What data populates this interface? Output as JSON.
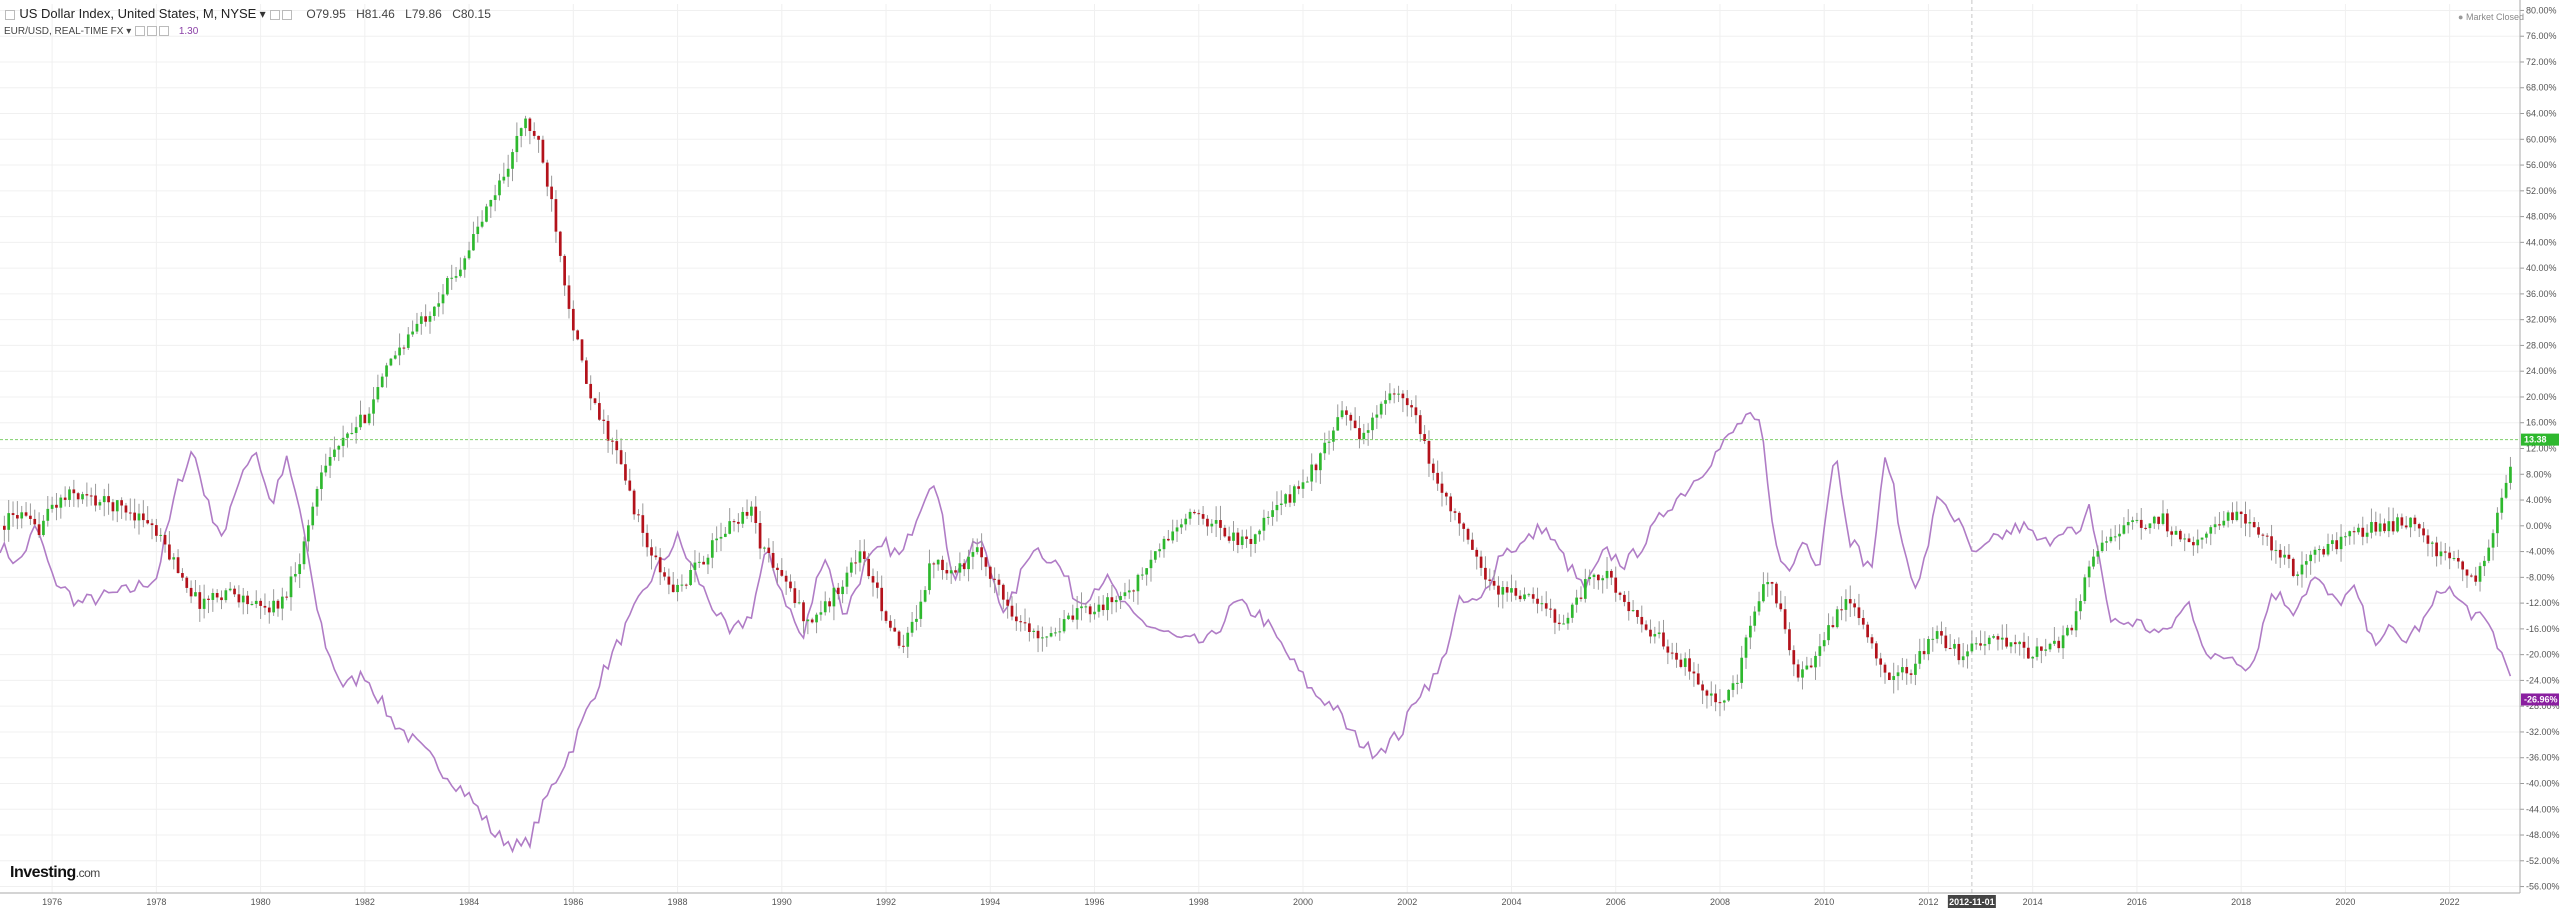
{
  "header": {
    "title": "US Dollar Index, United States, M, NYSE",
    "open": "O79.95",
    "high": "H81.46",
    "low": "L79.86",
    "close": "C80.15",
    "compare_label": "EUR/USD, REAL-TIME FX",
    "compare_value": "1.30",
    "market_status": "Market Closed"
  },
  "logo": {
    "name": "Investing",
    "domain": ".com"
  },
  "cursor_date": "2012-11-01",
  "colors": {
    "up": "#2eb82e",
    "down": "#b3121b",
    "compare": "#b07cc6",
    "last_line": "#7fcf6a",
    "cursor": "#c8c8c8"
  },
  "chart_data": {
    "type": "line",
    "subtype": "candlestick percent-change comparison",
    "title": "US Dollar Index, United States, M, NYSE",
    "xlabel": "",
    "ylabel": "",
    "y_unit": "%",
    "ylim": [
      -57,
      81
    ],
    "xlim": [
      1975.0,
      2023.35
    ],
    "grid": true,
    "y_ticks": [
      80,
      76,
      72,
      68,
      64,
      60,
      56,
      52,
      48,
      44,
      40,
      36,
      32,
      28,
      24,
      20,
      16,
      12,
      8,
      4,
      0,
      -4,
      -8,
      -12,
      -16,
      -20,
      -24,
      -28,
      -32,
      -36,
      -40,
      -44,
      -48,
      -52,
      -56
    ],
    "y_tick_labels": [
      "80.00%",
      "76.00%",
      "72.00%",
      "68.00%",
      "64.00%",
      "60.00%",
      "56.00%",
      "52.00%",
      "48.00%",
      "44.00%",
      "40.00%",
      "36.00%",
      "32.00%",
      "28.00%",
      "24.00%",
      "20.00%",
      "16.00%",
      "12.00%",
      "8.00%",
      "4.00%",
      "0.00%",
      "-4.00%",
      "-8.00%",
      "-12.00%",
      "-16.00%",
      "-20.00%",
      "-24.00%",
      "-28.00%",
      "-32.00%",
      "-36.00%",
      "-40.00%",
      "-44.00%",
      "-48.00%",
      "-52.00%",
      "-56.00%"
    ],
    "x_ticks": [
      1976,
      1978,
      1980,
      1982,
      1984,
      1986,
      1988,
      1990,
      1992,
      1994,
      1996,
      1998,
      2000,
      2002,
      2004,
      2006,
      2008,
      2010,
      2012,
      2014,
      2016,
      2018,
      2020,
      2022
    ],
    "x_tick_labels": [
      "1976",
      "1978",
      "1980",
      "1982",
      "1984",
      "1986",
      "1988",
      "1990",
      "1992",
      "1994",
      "1996",
      "1998",
      "2000",
      "2002",
      "2004",
      "2006",
      "2008",
      "2010",
      "2012",
      "2014",
      "2016",
      "2018",
      "2020",
      "2022"
    ],
    "last_labels": [
      {
        "series": "US Dollar Index",
        "text": "13.38",
        "value": 13.38
      },
      {
        "series": "EUR/USD",
        "text": "-26.96%",
        "value": -26.96
      }
    ],
    "series": [
      {
        "name": "US Dollar Index, United States, M, NYSE",
        "style": "candlestick",
        "anchors_x": [
          1975.0,
          1975.35,
          1975.7,
          1976.0,
          1976.4,
          1976.8,
          1977.3,
          1977.8,
          1978.3,
          1978.8,
          1979.4,
          1980.0,
          1980.4,
          1980.8,
          1981.2,
          1981.6,
          1982.0,
          1982.6,
          1983.2,
          1983.8,
          1984.4,
          1984.8,
          1985.05,
          1985.3,
          1985.6,
          1985.9,
          1986.3,
          1986.8,
          1987.4,
          1987.8,
          1988.0,
          1988.5,
          1989.0,
          1989.4,
          1989.6,
          1990.0,
          1990.5,
          1990.9,
          1991.2,
          1991.5,
          1991.9,
          1992.3,
          1992.6,
          1992.9,
          1993.3,
          1993.8,
          1994.3,
          1994.8,
          1995.3,
          1995.8,
          1996.3,
          1996.8,
          1997.2,
          1997.6,
          1998.0,
          1998.5,
          1998.9,
          1999.3,
          1999.8,
          2000.3,
          2000.8,
          2001.2,
          2001.5,
          2001.8,
          2002.1,
          2002.5,
          2002.9,
          2003.3,
          2003.7,
          2004.0,
          2004.5,
          2005.0,
          2005.5,
          2005.9,
          2006.4,
          2006.9,
          2007.5,
          2008.0,
          2008.3,
          2008.6,
          2008.9,
          2009.2,
          2009.5,
          2009.9,
          2010.3,
          2010.6,
          2010.9,
          2011.3,
          2011.7,
          2012.1,
          2012.6,
          2013.0,
          2013.5,
          2014.0,
          2014.4,
          2014.8,
          2015.1,
          2015.5,
          2016.0,
          2016.5,
          2016.9,
          2017.3,
          2017.8,
          2018.2,
          2018.6,
          2019.0,
          2019.5,
          2020.0,
          2020.3,
          2020.6,
          2020.9,
          2021.3,
          2021.7,
          2022.1,
          2022.5,
          2022.8,
          2023.0,
          2023.2
        ],
        "anchors_y": [
          0,
          2,
          -1,
          3,
          5,
          4,
          3,
          1,
          -5,
          -12,
          -10,
          -13,
          -12,
          -4,
          10,
          13,
          17,
          27,
          33,
          40,
          50,
          57,
          63,
          60,
          50,
          35,
          20,
          12,
          -3,
          -9,
          -10,
          -5,
          0,
          3,
          -3,
          -8,
          -15,
          -12,
          -8,
          -4,
          -12,
          -20,
          -13,
          -5,
          -7,
          -4,
          -12,
          -17,
          -16,
          -13,
          -12,
          -9,
          -4,
          0,
          2,
          -1,
          -3,
          1,
          5,
          10,
          18,
          13,
          20,
          20,
          18,
          8,
          2,
          -5,
          -10,
          -10,
          -12,
          -15,
          -8,
          -8,
          -15,
          -18,
          -23,
          -28,
          -25,
          -15,
          -8,
          -14,
          -24,
          -20,
          -12,
          -13,
          -18,
          -24,
          -22,
          -17,
          -20,
          -18,
          -18,
          -20,
          -19,
          -15,
          -5,
          -1,
          0,
          1,
          -3,
          -1,
          2,
          0,
          -3,
          -7,
          -4,
          -2,
          -1,
          0,
          0,
          1,
          -4,
          -6,
          -8,
          -2,
          5,
          10,
          13.38
        ],
        "last_value": 13.38
      },
      {
        "name": "EUR/USD, REAL-TIME FX",
        "style": "line",
        "anchors_x": [
          1975.0,
          1975.35,
          1975.7,
          1976.0,
          1976.5,
          1977.0,
          1977.5,
          1978.0,
          1978.4,
          1978.7,
          1979.0,
          1979.3,
          1979.6,
          1979.9,
          1980.2,
          1980.5,
          1980.8,
          1981.0,
          1981.3,
          1981.6,
          1982.0,
          1982.5,
          1983.0,
          1983.5,
          1984.0,
          1984.5,
          1985.0,
          1985.15,
          1985.5,
          1986.0,
          1986.5,
          1987.0,
          1987.5,
          1988.0,
          1988.5,
          1989.0,
          1989.4,
          1989.7,
          1990.0,
          1990.4,
          1990.8,
          1991.2,
          1991.6,
          1992.0,
          1992.3,
          1992.6,
          1992.9,
          1993.3,
          1993.8,
          1994.3,
          1994.8,
          1995.3,
          1995.7,
          1996.2,
          1996.7,
          1997.2,
          1997.7,
          1998.2,
          1998.7,
          1999.2,
          1999.7,
          2000.2,
          2000.6,
          2000.9,
          2001.3,
          2001.6,
          2001.9,
          2002.2,
          2002.6,
          2003.0,
          2003.4,
          2003.8,
          2004.2,
          2004.6,
          2005.0,
          2005.4,
          2005.8,
          2006.2,
          2006.6,
          2007.0,
          2007.4,
          2007.8,
          2008.2,
          2008.5,
          2008.8,
          2009.0,
          2009.3,
          2009.6,
          2009.9,
          2010.2,
          2010.5,
          2010.9,
          2011.2,
          2011.5,
          2011.8,
          2012.2,
          2012.6,
          2012.9,
          2013.3,
          2013.8,
          2014.2,
          2014.6,
          2014.9,
          2015.1,
          2015.5,
          2016.0,
          2016.5,
          2017.0,
          2017.4,
          2017.8,
          2018.2,
          2018.6,
          2019.0,
          2019.4,
          2019.8,
          2020.2,
          2020.5,
          2020.8,
          2021.1,
          2021.5,
          2021.9,
          2022.2,
          2022.5,
          2022.8,
          2023.0,
          2023.2
        ],
        "anchors_y": [
          -3,
          -6,
          0,
          -8,
          -12,
          -11,
          -10,
          -8,
          6,
          12,
          3,
          -2,
          8,
          12,
          3,
          10,
          1,
          -10,
          -20,
          -25,
          -23,
          -30,
          -34,
          -38,
          -42,
          -48,
          -50,
          -49,
          -42,
          -34,
          -24,
          -16,
          -8,
          -2,
          -10,
          -17,
          -14,
          -4,
          -10,
          -18,
          -4,
          -14,
          -6,
          -3,
          -5,
          2,
          8,
          -8,
          -2,
          -14,
          -3,
          -6,
          -12,
          -8,
          -14,
          -16,
          -18,
          -18,
          -12,
          -14,
          -20,
          -26,
          -28,
          -32,
          -35,
          -34,
          -32,
          -26,
          -23,
          -12,
          -12,
          -4,
          -3,
          0,
          -5,
          -10,
          -4,
          -6,
          -2,
          3,
          6,
          10,
          14,
          17,
          15,
          0,
          -8,
          -2,
          -6,
          12,
          -2,
          -7,
          12,
          -3,
          -10,
          5,
          0,
          -5,
          -2,
          0,
          -3,
          0,
          -2,
          3,
          -15,
          -15,
          -17,
          -12,
          -21,
          -20,
          -22,
          -10,
          -13,
          -8,
          -12,
          -10,
          -18,
          -16,
          -18,
          -15,
          -9,
          -12,
          -14,
          -16,
          -20,
          -24,
          -26.96
        ],
        "last_value": -26.96
      }
    ]
  }
}
